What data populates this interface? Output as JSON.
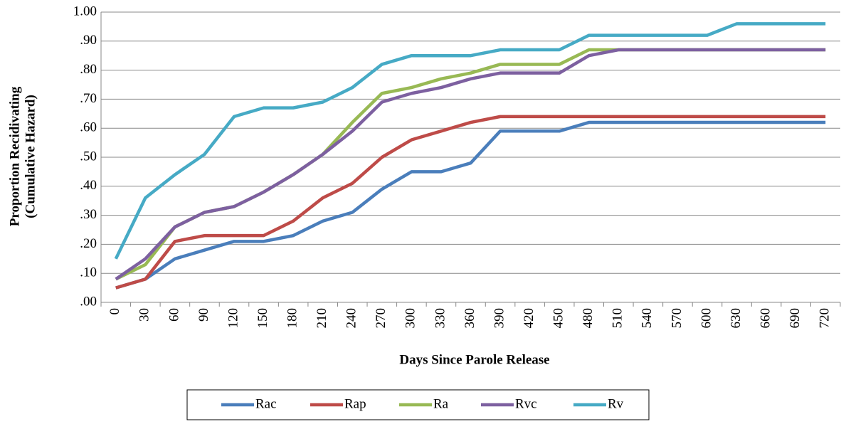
{
  "chart_data": {
    "type": "line",
    "xlabel": "Days Since Parole Release",
    "ylabel": [
      "Proportion Recidivating",
      "(Cumulative Hazard)"
    ],
    "categories": [
      0,
      30,
      60,
      90,
      120,
      150,
      180,
      210,
      240,
      270,
      300,
      330,
      360,
      390,
      420,
      450,
      480,
      510,
      540,
      570,
      600,
      630,
      660,
      690,
      720
    ],
    "series": [
      {
        "name": "Rac",
        "color": "#4a7ebb",
        "values": [
          0.05,
          0.08,
          0.15,
          0.18,
          0.21,
          0.21,
          0.23,
          0.28,
          0.31,
          0.39,
          0.45,
          0.45,
          0.48,
          0.59,
          0.59,
          0.59,
          0.62,
          0.62,
          0.62,
          0.62,
          0.62,
          0.62,
          0.62,
          0.62,
          0.62
        ]
      },
      {
        "name": "Rap",
        "color": "#be4b48",
        "values": [
          0.05,
          0.08,
          0.21,
          0.23,
          0.23,
          0.23,
          0.28,
          0.36,
          0.41,
          0.5,
          0.56,
          0.59,
          0.62,
          0.64,
          0.64,
          0.64,
          0.64,
          0.64,
          0.64,
          0.64,
          0.64,
          0.64,
          0.64,
          0.64,
          0.64
        ]
      },
      {
        "name": "Ra",
        "color": "#98b954",
        "values": [
          0.08,
          0.13,
          0.26,
          0.31,
          0.33,
          0.38,
          0.44,
          0.51,
          0.62,
          0.72,
          0.74,
          0.77,
          0.79,
          0.82,
          0.82,
          0.82,
          0.87,
          0.87,
          0.87,
          0.87,
          0.87,
          0.87,
          0.87,
          0.87,
          0.87
        ]
      },
      {
        "name": "Rvc",
        "color": "#7d60a0",
        "values": [
          0.08,
          0.15,
          0.26,
          0.31,
          0.33,
          0.38,
          0.44,
          0.51,
          0.59,
          0.69,
          0.72,
          0.74,
          0.77,
          0.79,
          0.79,
          0.79,
          0.85,
          0.87,
          0.87,
          0.87,
          0.87,
          0.87,
          0.87,
          0.87,
          0.87
        ]
      },
      {
        "name": "Rv",
        "color": "#46aac5",
        "values": [
          0.15,
          0.36,
          0.44,
          0.51,
          0.64,
          0.67,
          0.67,
          0.69,
          0.74,
          0.82,
          0.85,
          0.85,
          0.85,
          0.87,
          0.87,
          0.87,
          0.92,
          0.92,
          0.92,
          0.92,
          0.92,
          0.96,
          0.96,
          0.96,
          0.96
        ]
      }
    ],
    "ylim": [
      0,
      1
    ],
    "yticks": [
      {
        "value": 0,
        "label": ".00"
      },
      {
        "value": 0.1,
        "label": ".10"
      },
      {
        "value": 0.2,
        "label": ".20"
      },
      {
        "value": 0.3,
        "label": ".30"
      },
      {
        "value": 0.4,
        "label": ".40"
      },
      {
        "value": 0.5,
        "label": ".50"
      },
      {
        "value": 0.6,
        "label": ".60"
      },
      {
        "value": 0.7,
        "label": ".70"
      },
      {
        "value": 0.8,
        "label": ".80"
      },
      {
        "value": 0.9,
        "label": ".90"
      },
      {
        "value": 1,
        "label": "1.00"
      }
    ],
    "grid": true,
    "legend": "bottom"
  }
}
